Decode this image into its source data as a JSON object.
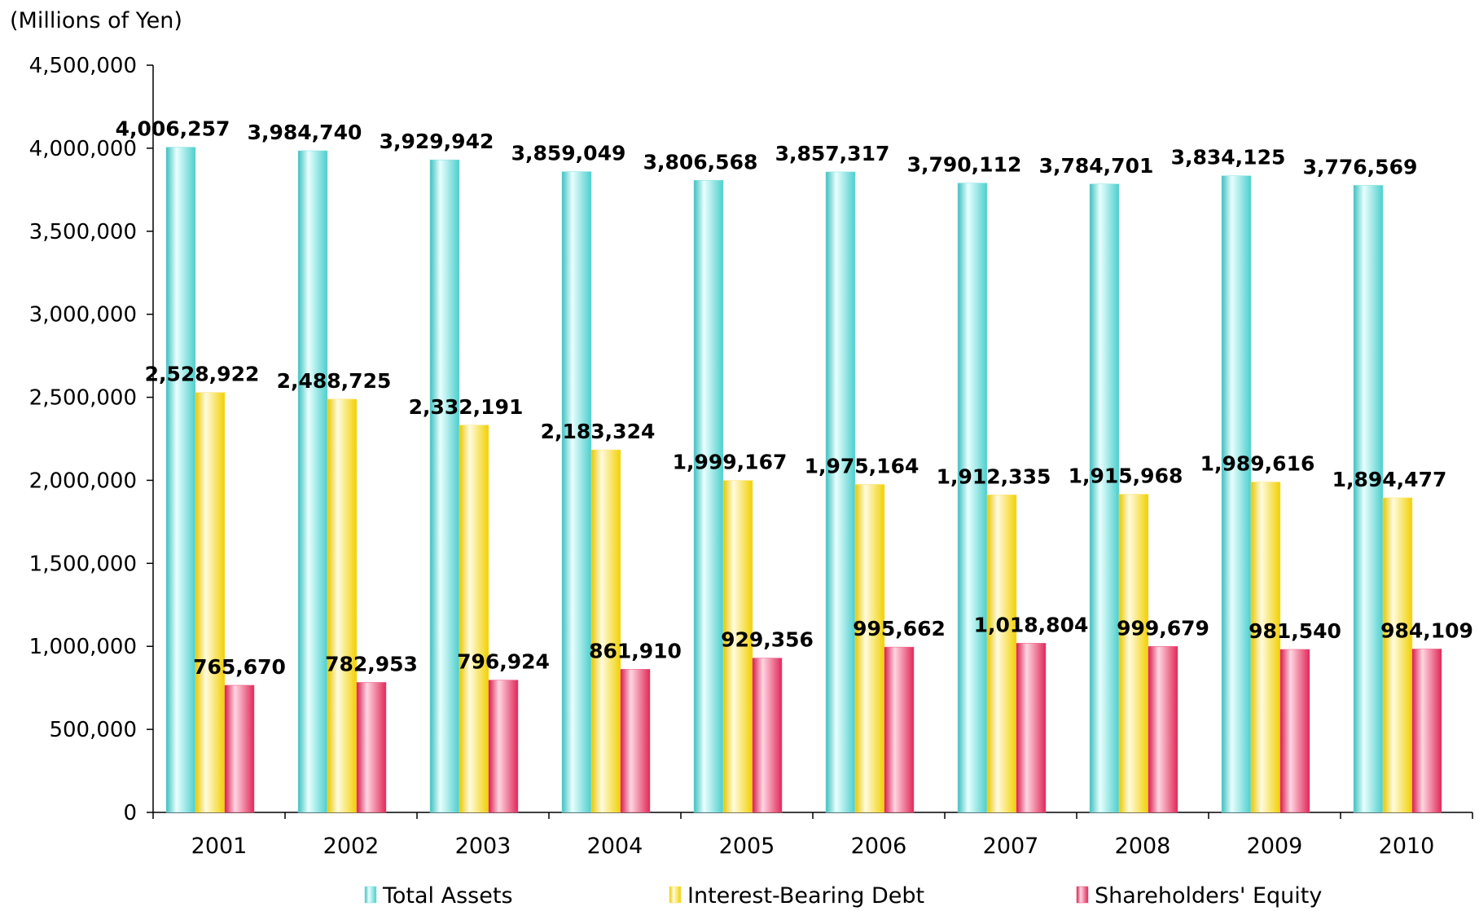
{
  "chart_data": {
    "type": "bar",
    "unit_label": "(Millions of Yen)",
    "categories": [
      "2001",
      "2002",
      "2003",
      "2004",
      "2005",
      "2006",
      "2007",
      "2008",
      "2009",
      "2010"
    ],
    "series": [
      {
        "name": "Total Assets",
        "color": "#7fe3e0",
        "values": [
          4006257,
          3984740,
          3929942,
          3859049,
          3806568,
          3857317,
          3790112,
          3784701,
          3834125,
          3776569
        ],
        "labels": [
          "4,006,257",
          "3,984,740",
          "3,929,942",
          "3,859,049",
          "3,806,568",
          "3,857,317",
          "3,790,112",
          "3,784,701",
          "3,834,125",
          "3,776,569"
        ]
      },
      {
        "name": "Interest-Bearing Debt",
        "color": "#ffe066",
        "values": [
          2528922,
          2488725,
          2332191,
          2183324,
          1999167,
          1975164,
          1912335,
          1915968,
          1989616,
          1894477
        ],
        "labels": [
          "2,528,922",
          "2,488,725",
          "2,332,191",
          "2,183,324",
          "1,999,167",
          "1,975,164",
          "1,912,335",
          "1,915,968",
          "1,989,616",
          "1,894,477"
        ]
      },
      {
        "name": "Shareholders' Equity",
        "color": "#f0507a",
        "values": [
          765670,
          782953,
          796924,
          861910,
          929356,
          995662,
          1018804,
          999679,
          981540,
          984109
        ],
        "labels": [
          "765,670",
          "782,953",
          "796,924",
          "861,910",
          "929,356",
          "995,662",
          "1,018,804",
          "999,679",
          "981,540",
          "984,109"
        ]
      }
    ],
    "ylim": [
      0,
      4500000
    ],
    "yticks": [
      0,
      500000,
      1000000,
      1500000,
      2000000,
      2500000,
      3000000,
      3500000,
      4000000,
      4500000
    ],
    "ytick_labels": [
      "0",
      "500,000",
      "1,000,000",
      "1,500,000",
      "2,000,000",
      "2,500,000",
      "3,000,000",
      "3,500,000",
      "4,000,000",
      "4,500,000"
    ],
    "grid": false,
    "legend_position": "bottom"
  }
}
